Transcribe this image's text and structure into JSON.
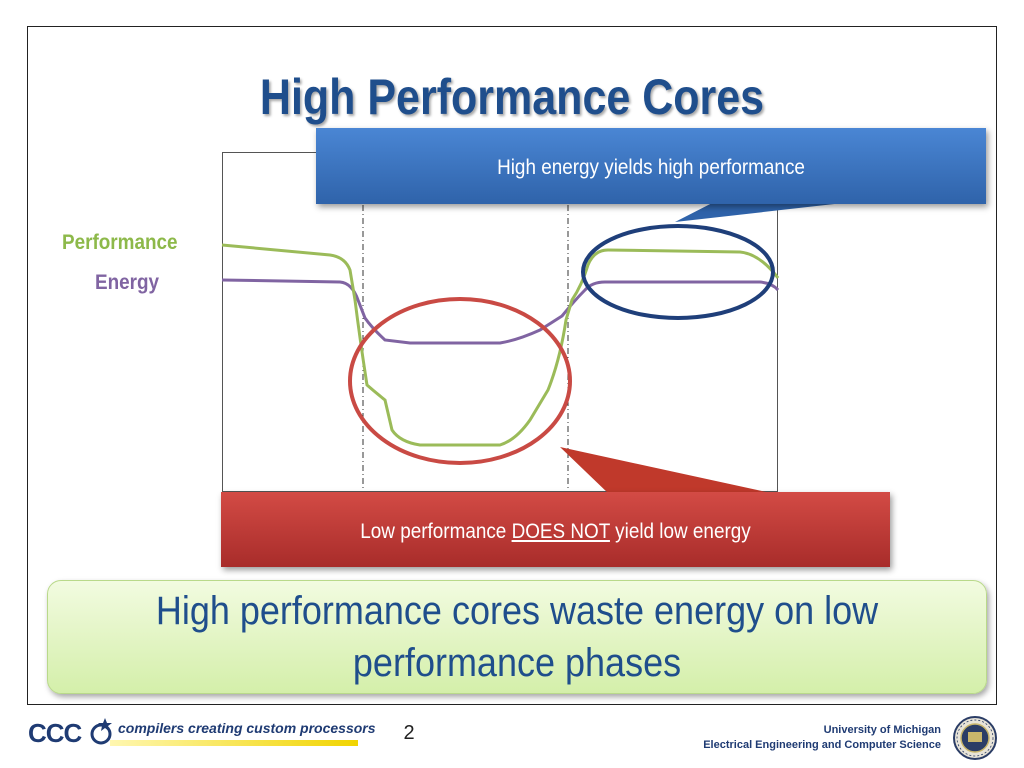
{
  "slide": {
    "title": "High Performance Cores",
    "page_number": "2"
  },
  "legend": {
    "performance": "Performance",
    "energy": "Energy",
    "performance_color": "#8db94a",
    "energy_color": "#8064a2"
  },
  "callouts": {
    "top": "High energy yields high performance",
    "bottom_prefix": "Low performance ",
    "bottom_emphasis": "DOES NOT",
    "bottom_suffix": " yield low energy"
  },
  "summary": {
    "line1": "High performance cores waste energy on low",
    "line2": "performance phases"
  },
  "footer": {
    "logo_text": "CCC",
    "tagline": "compilers creating custom processors",
    "university": "University of Michigan",
    "department": "Electrical Engineering and Computer Science"
  },
  "colors": {
    "title": "#1f4e8c",
    "callout_top": "#3a74c4",
    "callout_bottom": "#c0392b",
    "highlight_high": "#1f3f7a",
    "highlight_low": "#c94a44"
  }
}
